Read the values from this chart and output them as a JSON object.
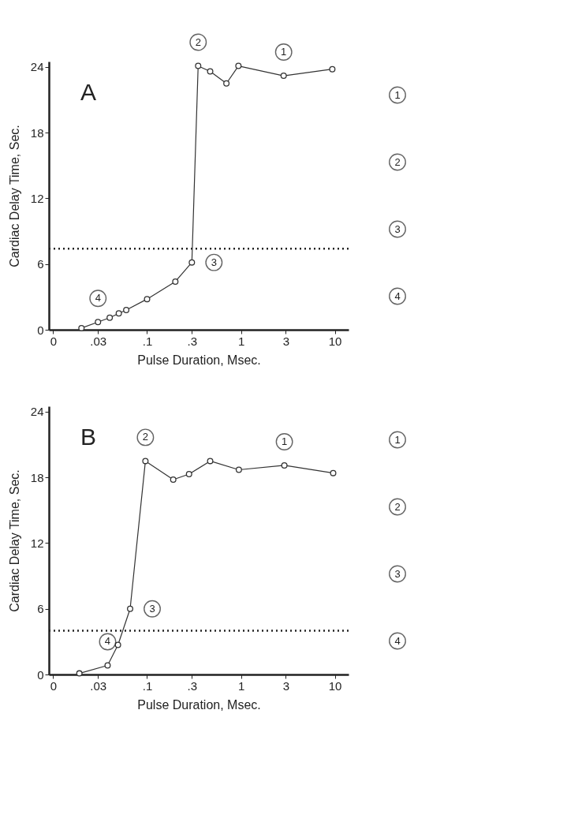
{
  "chart_data": [
    {
      "type": "line",
      "xlabel": "Pulse Duration, Msec.",
      "ylabel": "Cardiac Delay Time, Sec.",
      "log": "x",
      "marker": "circle",
      "grid": false,
      "x": [
        0.02,
        0.03,
        0.04,
        0.05,
        0.06,
        0.1,
        0.2,
        0.3,
        0.35,
        0.47,
        0.7,
        0.94,
        2.85,
        9.4
      ],
      "series": [
        {
          "color": "#333333",
          "values": [
            0.15,
            0.7,
            1.1,
            1.5,
            1.8,
            2.8,
            4.4,
            6.15,
            24.1,
            23.6,
            22.5,
            24.1,
            23.2,
            23.8
          ]
        }
      ],
      "xlim": [
        0.009,
        14
      ],
      "xticks": [
        {
          "value": 0.01,
          "label": "0"
        },
        {
          "value": 0.03,
          "label": ".03"
        },
        {
          "value": 0.1,
          "label": ".1"
        },
        {
          "value": 0.3,
          "label": ".3"
        },
        1,
        3,
        10
      ],
      "ylim": [
        0,
        24.5
      ],
      "yticks": [
        0,
        6,
        12,
        18,
        24
      ],
      "ref_lines": [
        {
          "axis": "y",
          "value": 7.4,
          "line_style": "dotted",
          "color": "#222222"
        }
      ],
      "annotations": [
        "A",
        {
          "text": "2",
          "x": 0.35,
          "y": 24.1
        },
        {
          "text": "1",
          "x": 2.85,
          "y": 23.2
        },
        {
          "text": "3",
          "x": 0.3,
          "y": 6.15
        },
        {
          "text": "4",
          "x": 0.03,
          "y": 0.7
        },
        "1",
        "2",
        "3",
        "4"
      ]
    },
    {
      "type": "line",
      "xlabel": "Pulse Duration, Msec.",
      "ylabel": "Cardiac Delay Time, Sec.",
      "log": "x",
      "marker": "circle",
      "grid": false,
      "x": [
        0.019,
        0.038,
        0.049,
        0.066,
        0.096,
        0.19,
        0.28,
        0.47,
        0.95,
        2.9,
        9.6
      ],
      "series": [
        {
          "color": "#333333",
          "values": [
            0.1,
            0.83,
            2.7,
            6.0,
            19.5,
            17.8,
            18.3,
            19.5,
            18.7,
            19.1,
            18.4
          ]
        }
      ],
      "xlim": [
        0.009,
        14
      ],
      "xticks": [
        {
          "value": 0.01,
          "label": "0"
        },
        {
          "value": 0.03,
          "label": ".03"
        },
        {
          "value": 0.1,
          "label": ".1"
        },
        {
          "value": 0.3,
          "label": ".3"
        },
        1,
        3,
        10
      ],
      "ylim": [
        0,
        24.5
      ],
      "yticks": [
        0,
        6,
        12,
        18,
        24
      ],
      "ref_lines": [
        {
          "axis": "y",
          "value": 4,
          "line_style": "dotted",
          "color": "#222222"
        }
      ],
      "annotations": [
        "B",
        {
          "text": "2",
          "x": 0.096,
          "y": 19.5
        },
        {
          "text": "1",
          "x": 2.9,
          "y": 19.1
        },
        {
          "text": "3",
          "x": 0.066,
          "y": 6.0
        },
        {
          "text": "4",
          "x": 0.038,
          "y": 0.83
        },
        "1",
        "2",
        "3",
        "4"
      ]
    }
  ]
}
